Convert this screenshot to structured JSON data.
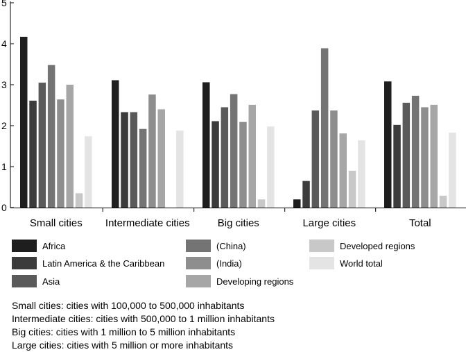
{
  "chart_data": {
    "type": "bar",
    "title": "",
    "xlabel": "",
    "ylabel": "",
    "ylim": [
      0,
      5
    ],
    "yticks": [
      "0",
      "1",
      "2",
      "3",
      "4",
      "5"
    ],
    "grid": false,
    "categories": [
      "Small cities",
      "Intermediate cities",
      "Big cities",
      "Large cities",
      "Total"
    ],
    "series": [
      {
        "name": "Africa",
        "color": "#1e1e1e",
        "values": [
          4.17,
          3.11,
          3.06,
          0.2,
          3.08
        ]
      },
      {
        "name": "Latin America & the Caribbean",
        "color": "#3c3c3c",
        "values": [
          2.61,
          2.33,
          2.11,
          0.65,
          2.02
        ]
      },
      {
        "name": "Asia",
        "color": "#5a5a5a",
        "values": [
          3.05,
          2.33,
          2.45,
          2.37,
          2.56
        ]
      },
      {
        "name": "(China)",
        "color": "#747474",
        "values": [
          3.48,
          1.92,
          2.77,
          3.89,
          2.73
        ]
      },
      {
        "name": "(India)",
        "color": "#8e8e8e",
        "values": [
          2.64,
          2.76,
          2.09,
          2.37,
          2.45
        ]
      },
      {
        "name": "Developing regions",
        "color": "#a6a6a6",
        "values": [
          3.0,
          2.4,
          2.51,
          1.81,
          2.51
        ]
      },
      {
        "name": "Developed regions",
        "color": "#c8c8c8",
        "values": [
          0.35,
          0,
          0.2,
          0.9,
          0.29
        ]
      },
      {
        "name": "World total",
        "color": "#e4e4e4",
        "values": [
          1.74,
          1.88,
          1.98,
          1.64,
          1.83
        ]
      }
    ],
    "legend_order": [
      "Africa",
      "Latin America & the Caribbean",
      "Asia",
      "(China)",
      "(India)",
      "Developing regions",
      "Developed regions",
      "World total"
    ]
  },
  "notes": [
    "Small cities: cities with 100,000 to 500,000 inhabitants",
    "Intermediate cities: cities with 500,000 to 1 million inhabitants",
    "Big cities: cities with 1 million to 5 million inhabitants",
    "Large cities: cities with 5 million or more inhabitants"
  ]
}
